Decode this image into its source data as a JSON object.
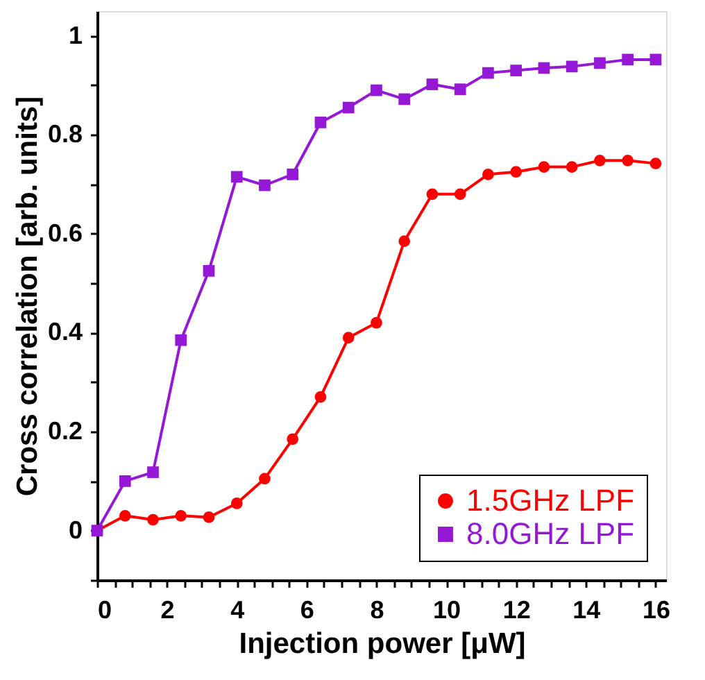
{
  "chart_data": {
    "type": "line",
    "xlabel": "Injection power [μW]",
    "ylabel": "Cross correlation [arb. units]",
    "x": [
      0,
      0.8,
      1.6,
      2.4,
      3.2,
      4.0,
      4.8,
      5.6,
      6.4,
      7.2,
      8.0,
      8.8,
      9.6,
      10.4,
      11.2,
      12.0,
      12.8,
      13.6,
      14.4,
      15.2,
      16.0
    ],
    "series": [
      {
        "name": "1.5GHz LPF",
        "color": "#ff0000",
        "marker": "circle",
        "values": [
          0,
          0.03,
          0.022,
          0.03,
          0.027,
          0.055,
          0.105,
          0.185,
          0.27,
          0.39,
          0.42,
          0.585,
          0.68,
          0.68,
          0.72,
          0.725,
          0.735,
          0.735,
          0.748,
          0.748,
          0.742
        ]
      },
      {
        "name": "8.0GHz LPF",
        "color": "#9418d6",
        "marker": "square",
        "values": [
          0,
          0.1,
          0.118,
          0.385,
          0.525,
          0.715,
          0.698,
          0.72,
          0.825,
          0.855,
          0.89,
          0.872,
          0.902,
          0.892,
          0.925,
          0.93,
          0.935,
          0.938,
          0.945,
          0.952,
          0.952
        ]
      }
    ],
    "xlim": [
      0,
      16.3
    ],
    "ylim": [
      -0.1,
      1.05
    ],
    "xticks": [
      0,
      {
        "value": 0.5,
        "label": null
      },
      {
        "value": 1,
        "label": null
      },
      {
        "value": 1.5,
        "label": null
      },
      2,
      {
        "value": 2.5,
        "label": null
      },
      {
        "value": 3,
        "label": null
      },
      {
        "value": 3.5,
        "label": null
      },
      4,
      {
        "value": 4.5,
        "label": null
      },
      {
        "value": 5,
        "label": null
      },
      {
        "value": 5.5,
        "label": null
      },
      6,
      {
        "value": 6.5,
        "label": null
      },
      {
        "value": 7,
        "label": null
      },
      {
        "value": 7.5,
        "label": null
      },
      8,
      {
        "value": 8.5,
        "label": null
      },
      {
        "value": 9,
        "label": null
      },
      {
        "value": 9.5,
        "label": null
      },
      10,
      {
        "value": 10.5,
        "label": null
      },
      {
        "value": 11,
        "label": null
      },
      {
        "value": 11.5,
        "label": null
      },
      12,
      {
        "value": 12.5,
        "label": null
      },
      {
        "value": 13,
        "label": null
      },
      {
        "value": 13.5,
        "label": null
      },
      14,
      {
        "value": 14.5,
        "label": null
      },
      {
        "value": 15,
        "label": null
      },
      {
        "value": 15.5,
        "label": null
      },
      16
    ],
    "yticks": [
      {
        "value": -0.1,
        "label": null
      },
      0,
      {
        "value": 0.1,
        "label": null
      },
      0.2,
      {
        "value": 0.3,
        "label": null
      },
      0.4,
      {
        "value": 0.5,
        "label": null
      },
      0.6,
      {
        "value": 0.7,
        "label": null
      },
      0.8,
      {
        "value": 0.9,
        "label": null
      },
      1
    ],
    "grid": false,
    "legend": "bottom right"
  }
}
